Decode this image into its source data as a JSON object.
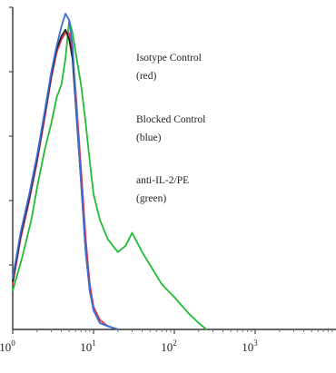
{
  "chart_data": {
    "type": "line",
    "x_scale": "log",
    "xlim": [
      1,
      10000
    ],
    "ylim": [
      0,
      100
    ],
    "grid": false,
    "x_tick_labels": [
      {
        "value": 1,
        "base": "10",
        "exp": "0"
      },
      {
        "value": 10,
        "base": "10",
        "exp": "1"
      },
      {
        "value": 100,
        "base": "10",
        "exp": "2"
      },
      {
        "value": 1000,
        "base": "10",
        "exp": "3"
      }
    ],
    "annotations": [
      {
        "line1": "Isotype Control",
        "line2": "(red)"
      },
      {
        "line1": "Blocked Control",
        "line2": "(blue)"
      },
      {
        "line1": "anti-IL-2/PE",
        "line2": "(green)"
      }
    ],
    "series": [
      {
        "color": "#e8344a",
        "x": [
          1.0,
          1.25,
          1.6,
          2.0,
          2.5,
          3.0,
          3.5,
          4.0,
          4.5,
          5.0,
          5.5,
          6.0,
          7.0,
          8.0,
          9.0,
          10.0,
          12.0,
          15.0,
          20.0
        ],
        "y": [
          14,
          28,
          40,
          52,
          66,
          78,
          86,
          90,
          92,
          92,
          86,
          74,
          50,
          28,
          14,
          7,
          3,
          1,
          0
        ]
      },
      {
        "color": "#3a6fd8",
        "x": [
          1.0,
          1.25,
          1.6,
          2.0,
          2.5,
          3.0,
          3.5,
          4.0,
          4.5,
          5.0,
          5.5,
          6.0,
          7.0,
          8.0,
          9.0,
          10.0,
          12.0,
          15.0,
          20.0
        ],
        "y": [
          16,
          30,
          42,
          54,
          68,
          80,
          88,
          94,
          98,
          96,
          88,
          72,
          46,
          24,
          12,
          6,
          2,
          1,
          0
        ]
      },
      {
        "color": "#222222",
        "x": [
          1.0,
          1.25,
          1.6,
          2.0,
          2.5,
          3.0,
          3.5,
          4.0,
          4.5,
          5.0,
          5.5,
          6.0,
          7.0,
          8.0,
          9.0,
          10.0,
          12.0,
          15.0,
          20.0
        ],
        "y": [
          15,
          29,
          41,
          53,
          67,
          79,
          87,
          91,
          93,
          90,
          84,
          70,
          46,
          24,
          12,
          6,
          2,
          1,
          0
        ]
      },
      {
        "color": "#22bb33",
        "x": [
          1.0,
          1.3,
          1.7,
          2.0,
          2.5,
          3.0,
          3.5,
          4.0,
          4.5,
          5.0,
          5.5,
          6.0,
          7.0,
          8.0,
          9.0,
          10.0,
          12.0,
          15.0,
          20.0,
          25.0,
          30.0,
          40.0,
          50.0,
          70.0,
          100.0,
          150.0,
          200.0,
          250.0
        ],
        "y": [
          12,
          22,
          34,
          44,
          56,
          64,
          72,
          76,
          84,
          96,
          92,
          86,
          76,
          64,
          52,
          42,
          34,
          28,
          24,
          26,
          30,
          24,
          20,
          14,
          10,
          5,
          2,
          0
        ]
      }
    ]
  }
}
